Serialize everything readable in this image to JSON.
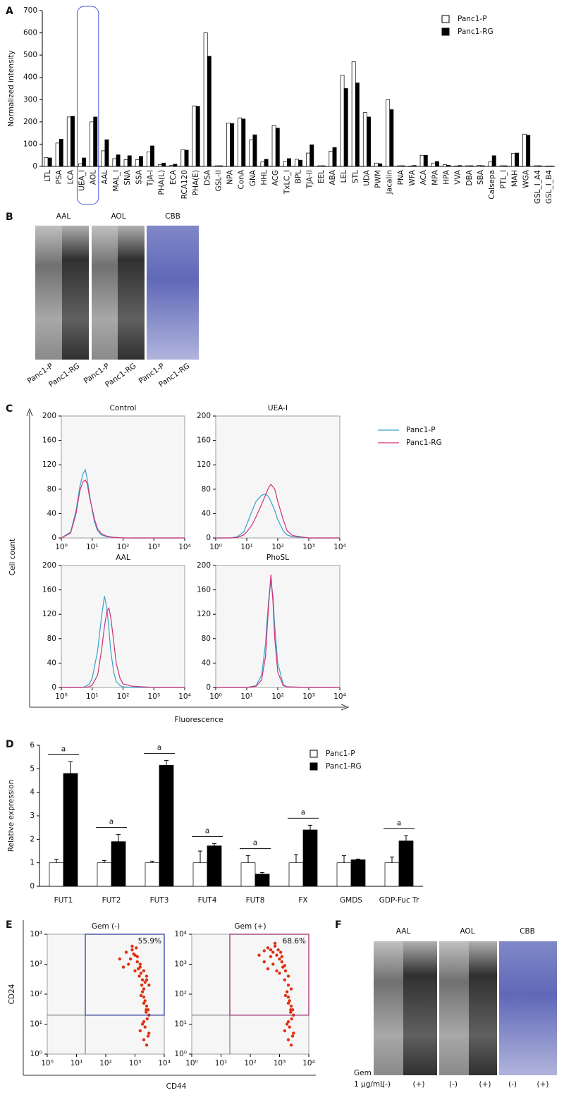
{
  "panel_labels": [
    "A",
    "B",
    "C",
    "D",
    "E",
    "F"
  ],
  "blot_B": {
    "stains": [
      "AAL",
      "AOL",
      "CBB"
    ],
    "lanes": [
      "Panc1-P",
      "Panc1-RG"
    ]
  },
  "blot_F": {
    "stains": [
      "AAL",
      "AOL",
      "CBB"
    ],
    "treatment": "Gem",
    "dose": "1 μg/mL",
    "lanes": [
      "(-)",
      "(+)"
    ]
  },
  "panel_C_axes": {
    "y_label": "Cell count",
    "x_label": "Fluorescence"
  },
  "panel_E_axes": {
    "y_label": "CD24",
    "x_label": "CD44"
  },
  "chart_data": [
    {
      "type": "bar",
      "ylabel": "Normalized intensity",
      "legend": "upper right",
      "categories": [
        "LTL",
        "PSA",
        "LCA",
        "UEA_I",
        "AOL",
        "AAL",
        "MAL_I",
        "SNA",
        "SSA",
        "TJA-I",
        "PHA(L)",
        "ECA",
        "RCA120",
        "PHA(E)",
        "DSA",
        "GSL-II",
        "NPA",
        "ConA",
        "GNA",
        "HHL",
        "ACG",
        "TxLC_I",
        "BPL",
        "TJA-II",
        "EEL",
        "ABA",
        "LEL",
        "STL",
        "UDA",
        "PWM",
        "Jacalin",
        "PNA",
        "WFA",
        "ACA",
        "MPA",
        "HPA",
        "VVA",
        "DBA",
        "SBA",
        "Calsepa",
        "PTL_I",
        "MAH",
        "WGA",
        "GSL_I_A4",
        "GSL_I_B4"
      ],
      "series": [
        {
          "name": "Panc1-P",
          "color": "#ffffff",
          "values": [
            40,
            105,
            222,
            12,
            200,
            70,
            35,
            30,
            30,
            65,
            8,
            5,
            75,
            272,
            600,
            3,
            195,
            218,
            120,
            20,
            185,
            22,
            32,
            60,
            3,
            68,
            410,
            470,
            242,
            15,
            300,
            3,
            2,
            50,
            15,
            8,
            2,
            3,
            5,
            20,
            3,
            58,
            145,
            3,
            2
          ]
        },
        {
          "name": "Panc1-RG",
          "color": "#000000",
          "values": [
            38,
            122,
            225,
            38,
            222,
            120,
            52,
            48,
            45,
            92,
            15,
            10,
            73,
            270,
            495,
            3,
            193,
            213,
            142,
            32,
            172,
            35,
            28,
            97,
            3,
            85,
            350,
            375,
            222,
            12,
            255,
            3,
            4,
            50,
            22,
            5,
            4,
            3,
            3,
            48,
            3,
            60,
            140,
            3,
            2
          ]
        }
      ],
      "ylim": [
        0,
        700
      ],
      "yticks": [
        0,
        100,
        200,
        300,
        400,
        500,
        600,
        700
      ]
    },
    {
      "type": "line",
      "title": "Control",
      "legend": "outside right",
      "x": [
        1,
        2,
        3,
        4,
        5,
        6,
        7,
        8,
        10,
        12,
        15,
        20,
        30,
        50,
        100,
        1000,
        10000
      ],
      "series": [
        {
          "name": "Panc1-P",
          "color": "#3aa0c8",
          "values": [
            0,
            10,
            45,
            85,
            105,
            112,
            95,
            75,
            45,
            25,
            12,
            5,
            2,
            1,
            0,
            0,
            0
          ]
        },
        {
          "name": "Panc1-RG",
          "color": "#d0307a",
          "values": [
            0,
            8,
            40,
            78,
            92,
            95,
            88,
            70,
            48,
            30,
            15,
            7,
            3,
            1,
            0,
            0,
            0
          ]
        }
      ],
      "xlim": [
        1,
        10000
      ],
      "xlog": true,
      "xticks": [
        {
          "value": 1,
          "label": "10⁰"
        },
        {
          "value": 10,
          "label": "10¹"
        },
        {
          "value": 100,
          "label": "10²"
        },
        {
          "value": 1000,
          "label": "10³"
        },
        {
          "value": 10000,
          "label": "10⁴"
        }
      ],
      "ylim": [
        0,
        200
      ],
      "yticks": [
        0,
        40,
        80,
        120,
        160,
        200
      ]
    },
    {
      "type": "line",
      "title": "UEA-I",
      "x": [
        1,
        3,
        5,
        8,
        10,
        15,
        20,
        30,
        40,
        50,
        60,
        80,
        100,
        150,
        200,
        300,
        1000,
        10000
      ],
      "series": [
        {
          "name": "Panc1-P",
          "color": "#3aa0c8",
          "values": [
            0,
            0,
            2,
            10,
            22,
            45,
            60,
            70,
            72,
            68,
            60,
            45,
            30,
            12,
            5,
            2,
            0,
            0
          ]
        },
        {
          "name": "Panc1-RG",
          "color": "#d0307a",
          "values": [
            0,
            0,
            1,
            5,
            10,
            22,
            35,
            55,
            70,
            82,
            88,
            80,
            60,
            30,
            12,
            4,
            0,
            0
          ]
        }
      ],
      "xlim": [
        1,
        10000
      ],
      "xlog": true,
      "xticks": [
        {
          "value": 1,
          "label": "10⁰"
        },
        {
          "value": 10,
          "label": "10¹"
        },
        {
          "value": 100,
          "label": "10²"
        },
        {
          "value": 1000,
          "label": "10³"
        },
        {
          "value": 10000,
          "label": "10⁴"
        }
      ],
      "ylim": [
        0,
        200
      ],
      "yticks": [
        0,
        40,
        80,
        120,
        160,
        200
      ]
    },
    {
      "type": "line",
      "title": "AAL",
      "x": [
        1,
        5,
        8,
        10,
        15,
        20,
        25,
        30,
        35,
        40,
        50,
        60,
        80,
        100,
        200,
        1000,
        10000
      ],
      "series": [
        {
          "name": "Panc1-P",
          "color": "#3aa0c8",
          "values": [
            0,
            0,
            5,
            15,
            60,
            115,
            150,
            130,
            95,
            60,
            25,
            10,
            3,
            1,
            0,
            0,
            0
          ]
        },
        {
          "name": "Panc1-RG",
          "color": "#d0307a",
          "values": [
            0,
            0,
            1,
            4,
            20,
            60,
            100,
            125,
            130,
            115,
            75,
            40,
            15,
            6,
            2,
            0,
            0
          ]
        }
      ],
      "xlim": [
        1,
        10000
      ],
      "xlog": true,
      "xticks": [
        {
          "value": 1,
          "label": "10⁰"
        },
        {
          "value": 10,
          "label": "10¹"
        },
        {
          "value": 100,
          "label": "10²"
        },
        {
          "value": 1000,
          "label": "10³"
        },
        {
          "value": 10000,
          "label": "10⁴"
        }
      ],
      "ylim": [
        0,
        200
      ],
      "yticks": [
        0,
        40,
        80,
        120,
        160,
        200
      ]
    },
    {
      "type": "line",
      "title": "PhoSL",
      "x": [
        1,
        10,
        20,
        30,
        40,
        50,
        60,
        70,
        80,
        100,
        150,
        200,
        1000,
        10000
      ],
      "series": [
        {
          "name": "Panc1-P",
          "color": "#3aa0c8",
          "values": [
            0,
            0,
            3,
            20,
            70,
            140,
            175,
            150,
            100,
            40,
            5,
            1,
            0,
            0
          ]
        },
        {
          "name": "Panc1-RG",
          "color": "#d0307a",
          "values": [
            0,
            0,
            2,
            12,
            50,
            130,
            185,
            140,
            80,
            25,
            3,
            1,
            0,
            0
          ]
        }
      ],
      "xlim": [
        1,
        10000
      ],
      "xlog": true,
      "xticks": [
        {
          "value": 1,
          "label": "10⁰"
        },
        {
          "value": 10,
          "label": "10¹"
        },
        {
          "value": 100,
          "label": "10²"
        },
        {
          "value": 1000,
          "label": "10³"
        },
        {
          "value": 10000,
          "label": "10⁴"
        }
      ],
      "ylim": [
        0,
        200
      ],
      "yticks": [
        0,
        40,
        80,
        120,
        160,
        200
      ]
    },
    {
      "type": "bar",
      "ylabel": "Relative expression",
      "legend": "upper right",
      "categories": [
        "FUT1",
        "FUT2",
        "FUT3",
        "FUT4",
        "FUT8",
        "FX",
        "GMDS",
        "GDP-Fuc Tr"
      ],
      "series": [
        {
          "name": "Panc1-P",
          "color": "#ffffff",
          "values": [
            1,
            1,
            1,
            1,
            1,
            1,
            1,
            1
          ],
          "errors": [
            0.15,
            0.1,
            0.07,
            0.5,
            0.3,
            0.35,
            0.3,
            0.25
          ]
        },
        {
          "name": "Panc1-RG",
          "color": "#000000",
          "values": [
            4.8,
            1.9,
            5.15,
            1.72,
            0.52,
            2.4,
            1.13,
            1.93
          ],
          "errors": [
            0.5,
            0.3,
            0.2,
            0.1,
            0.07,
            0.2,
            0.03,
            0.22
          ]
        }
      ],
      "significance": [
        "a",
        "a",
        "a",
        "a",
        "a",
        "a",
        null,
        "a"
      ],
      "ylim": [
        0,
        6
      ],
      "yticks": [
        0,
        1,
        2,
        3,
        4,
        5,
        6
      ]
    },
    {
      "type": "scatter",
      "title": "Gem (-)",
      "annotation": "55.9%",
      "gate": {
        "x": 20,
        "y": 20
      },
      "gate_color": "#3040a0",
      "color": "#e03010",
      "x": [
        300,
        500,
        800,
        1000,
        1200,
        1500,
        2000,
        2500,
        400,
        700,
        900,
        1100,
        1300,
        1600,
        1800,
        2200,
        600,
        1000,
        1400,
        1700,
        2000,
        3000,
        800,
        1200,
        1500,
        2500,
        1800,
        2000,
        2200,
        2500,
        2800,
        3000,
        1600,
        2000,
        2400,
        2600,
        1800,
        2200,
        3000,
        1500,
        2000,
        2500,
        2800,
        2000,
        2400
      ],
      "y": [
        1500,
        2500,
        3000,
        2000,
        1200,
        800,
        600,
        400,
        800,
        1500,
        2200,
        3500,
        700,
        500,
        300,
        250,
        1000,
        600,
        400,
        200,
        150,
        200,
        4000,
        1800,
        1000,
        300,
        120,
        80,
        60,
        40,
        30,
        20,
        90,
        50,
        30,
        15,
        10,
        8,
        5,
        6,
        3,
        2,
        4,
        12,
        25
      ],
      "xlim": [
        1,
        10000
      ],
      "xlog": true,
      "ylim": [
        1,
        10000
      ],
      "ylog": true,
      "xticks": [
        {
          "value": 1,
          "label": "10⁰"
        },
        {
          "value": 10,
          "label": "10¹"
        },
        {
          "value": 100,
          "label": "10²"
        },
        {
          "value": 1000,
          "label": "10³"
        },
        {
          "value": 10000,
          "label": "10⁴"
        }
      ],
      "yticks": [
        {
          "value": 1,
          "label": "10⁰"
        },
        {
          "value": 10,
          "label": "10¹"
        },
        {
          "value": 100,
          "label": "10²"
        },
        {
          "value": 1000,
          "label": "10³"
        },
        {
          "value": 10000,
          "label": "10⁴"
        }
      ]
    },
    {
      "type": "scatter",
      "title": "Gem (+)",
      "annotation": "68.6%",
      "gate": {
        "x": 20,
        "y": 20
      },
      "gate_color": "#a03070",
      "color": "#e03010",
      "x": [
        200,
        300,
        400,
        500,
        600,
        800,
        1000,
        1200,
        1500,
        300,
        500,
        700,
        900,
        1100,
        1300,
        1600,
        2000,
        400,
        600,
        800,
        1000,
        1500,
        2000,
        2500,
        1800,
        2000,
        2200,
        2500,
        2800,
        3000,
        1600,
        2000,
        2400,
        2600,
        1800,
        2200,
        3000,
        1500,
        2000,
        2500,
        2800,
        2000,
        2400,
        700,
        1200
      ],
      "y": [
        2000,
        2800,
        3500,
        3000,
        2500,
        2000,
        1500,
        1200,
        900,
        1200,
        1800,
        4000,
        3000,
        2500,
        800,
        600,
        400,
        700,
        1000,
        600,
        500,
        300,
        200,
        150,
        120,
        80,
        60,
        40,
        30,
        20,
        90,
        50,
        30,
        15,
        10,
        8,
        5,
        6,
        3,
        2,
        4,
        12,
        25,
        5000,
        1800
      ],
      "xlim": [
        1,
        10000
      ],
      "xlog": true,
      "ylim": [
        1,
        10000
      ],
      "ylog": true,
      "xticks": [
        {
          "value": 1,
          "label": "10⁰"
        },
        {
          "value": 10,
          "label": "10¹"
        },
        {
          "value": 100,
          "label": "10²"
        },
        {
          "value": 1000,
          "label": "10³"
        },
        {
          "value": 10000,
          "label": "10⁴"
        }
      ],
      "yticks": [
        {
          "value": 1,
          "label": "10⁰"
        },
        {
          "value": 10,
          "label": "10¹"
        },
        {
          "value": 100,
          "label": "10²"
        },
        {
          "value": 1000,
          "label": "10³"
        },
        {
          "value": 10000,
          "label": "10⁴"
        }
      ]
    }
  ]
}
